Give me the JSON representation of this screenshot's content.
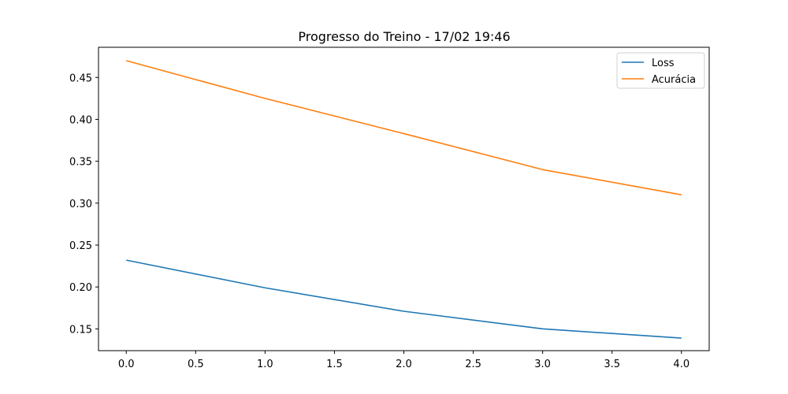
{
  "chart_data": {
    "type": "line",
    "title": "Progresso do Treino - 17/02 19:46",
    "xlabel": "",
    "ylabel": "",
    "x": [
      0,
      1,
      2,
      3,
      4
    ],
    "xlim": [
      -0.2,
      4.2
    ],
    "ylim": [
      0.124,
      0.486
    ],
    "xticks": [
      0.0,
      0.5,
      1.0,
      1.5,
      2.0,
      2.5,
      3.0,
      3.5,
      4.0
    ],
    "xtick_labels": [
      "0.0",
      "0.5",
      "1.0",
      "1.5",
      "2.0",
      "2.5",
      "3.0",
      "3.5",
      "4.0"
    ],
    "yticks": [
      0.15,
      0.2,
      0.25,
      0.3,
      0.35,
      0.4,
      0.45
    ],
    "ytick_labels": [
      "0.15",
      "0.20",
      "0.25",
      "0.30",
      "0.35",
      "0.40",
      "0.45"
    ],
    "grid": false,
    "legend_position": "top-right",
    "series": [
      {
        "name": "Loss",
        "color": "#1f77b4",
        "values": [
          0.232,
          0.199,
          0.171,
          0.15,
          0.139
        ]
      },
      {
        "name": "Acurácia",
        "color": "#ff7f0e",
        "values": [
          0.47,
          0.425,
          0.383,
          0.34,
          0.31
        ]
      }
    ]
  }
}
